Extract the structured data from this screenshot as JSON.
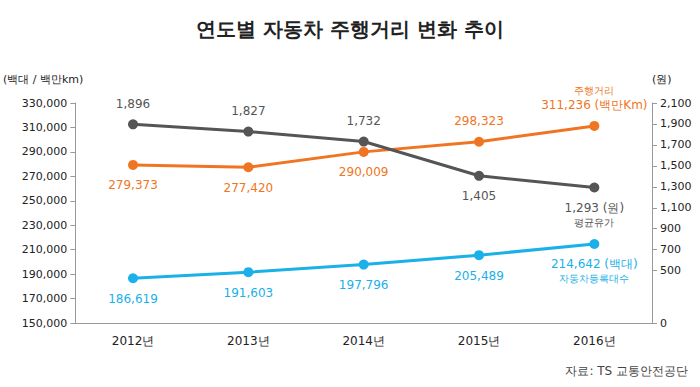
{
  "chart_data": {
    "type": "line",
    "title": "연도별 자동차 주행거리 변화 추이",
    "y_label": "(백대 / 백만km)",
    "y2_label": "(원)",
    "source": "자료: TS 교통안전공단",
    "categories": [
      "2012년",
      "2013년",
      "2014년",
      "2015년",
      "2016년"
    ],
    "series": [
      {
        "name": "주행거리",
        "color": "#f07522",
        "values": [
          279373,
          277420,
          290009,
          298323,
          311236
        ],
        "value_labels": [
          "279,373",
          "277,420",
          "290,009",
          "298,323",
          "311,236 (백만Km)"
        ]
      },
      {
        "name": "평균유가",
        "color": "#555555",
        "axis": "y2",
        "values": [
          1896,
          1827,
          1732,
          1405,
          1293
        ],
        "value_labels": [
          "1,896",
          "1,827",
          "1,732",
          "1,405",
          "1,293 (원)"
        ]
      },
      {
        "name": "자동차등록대수",
        "color": "#1ab0e8",
        "values": [
          186619,
          191603,
          197796,
          205489,
          214642
        ],
        "value_labels": [
          "186,619",
          "191,603",
          "197,796",
          "205,489",
          "214,642 (백대)"
        ]
      }
    ],
    "ylim": [
      150000,
      330000
    ],
    "yticks": [
      {
        "value": 150000,
        "label": "150,000"
      },
      {
        "value": 170000,
        "label": "170,000"
      },
      {
        "value": 190000,
        "label": "190,000"
      },
      {
        "value": 210000,
        "label": "210,000"
      },
      {
        "value": 230000,
        "label": "230,000"
      },
      {
        "value": 250000,
        "label": "250,000"
      },
      {
        "value": 270000,
        "label": "270,000"
      },
      {
        "value": 290000,
        "label": "290,000"
      },
      {
        "value": 310000,
        "label": "310,000"
      },
      {
        "value": 330000,
        "label": "330,000"
      }
    ],
    "y2lim": [
      0,
      2100
    ],
    "y2ticks": [
      0,
      500,
      700,
      900,
      {
        "value": 1100,
        "label": "1,100"
      },
      {
        "value": 1300,
        "label": "1,300"
      },
      {
        "value": 1500,
        "label": "1,500"
      },
      {
        "value": 1700,
        "label": "1,700"
      },
      {
        "value": 1900,
        "label": "1,900"
      },
      {
        "value": 2100,
        "label": "2,100"
      }
    ],
    "data_labels": true,
    "grid": false,
    "marker": "circle"
  }
}
